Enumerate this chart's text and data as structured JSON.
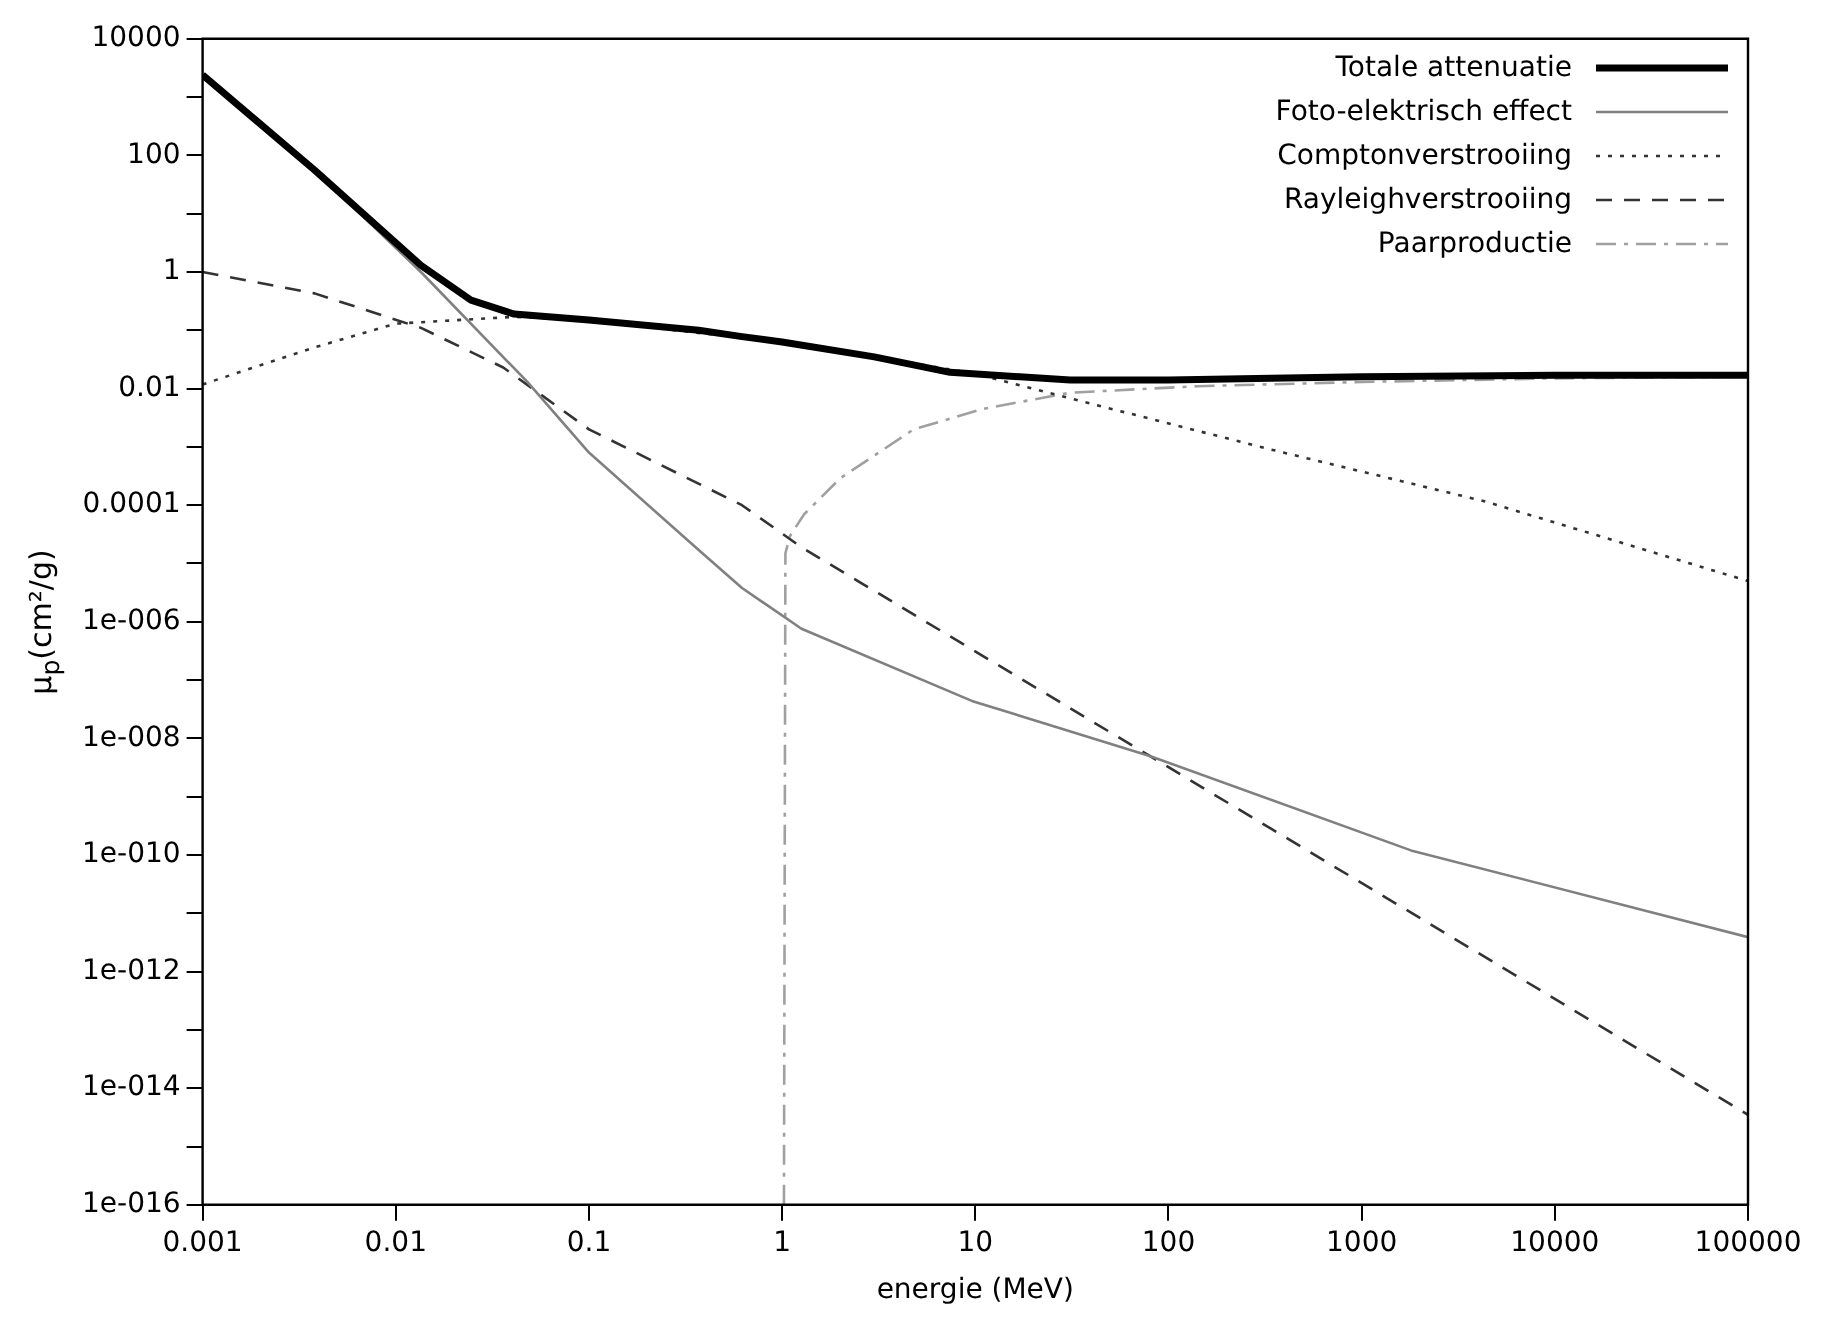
{
  "chart_data": {
    "type": "line",
    "xlabel": "energie (MeV)",
    "ylabel": "μ$_{p}$(cm²/g)",
    "log": "xy",
    "grid": false,
    "legend": "top right",
    "marker": "none",
    "xlim": [
      0.001,
      100000
    ],
    "xticks": [
      0.001,
      0.01,
      0.1,
      1,
      10,
      100,
      1000,
      10000,
      100000
    ],
    "ylim": [
      1e-16,
      10000
    ],
    "yticks": [
      10000,
      {
        "value": 1000,
        "label": null
      },
      100,
      {
        "value": 10,
        "label": null
      },
      1,
      {
        "value": 0.1,
        "label": null
      },
      0.01,
      {
        "value": 0.001,
        "label": null
      },
      0.0001,
      {
        "value": 1e-05,
        "label": null
      },
      {
        "value": 1e-06,
        "label": "1e-006"
      },
      {
        "value": 1e-07,
        "label": null
      },
      {
        "value": 1e-08,
        "label": "1e-008"
      },
      {
        "value": 1e-09,
        "label": null
      },
      {
        "value": 1e-10,
        "label": "1e-010"
      },
      {
        "value": 1e-11,
        "label": null
      },
      {
        "value": 1e-12,
        "label": "1e-012"
      },
      {
        "value": 1e-13,
        "label": null
      },
      {
        "value": 1e-14,
        "label": "1e-014"
      },
      {
        "value": 1e-15,
        "label": null
      },
      {
        "value": 1e-16,
        "label": "1e-016"
      }
    ],
    "series": [
      {
        "name": "Totale attenuatie",
        "color": "#000000",
        "line_style": "solid",
        "x": [
          0.001,
          0.0038,
          0.0135,
          0.0245,
          0.041,
          0.1,
          0.37,
          0.62,
          1,
          3,
          7.4,
          31,
          100,
          340,
          1000,
          10000,
          100000
        ],
        "values": [
          2400,
          56,
          1.3,
          0.33,
          0.19,
          0.15,
          0.1,
          0.078,
          0.063,
          0.035,
          0.019,
          0.014,
          0.014,
          0.015,
          0.016,
          0.017,
          0.017
        ]
      },
      {
        "name": "Foto-elektrisch effect",
        "color": "#808080",
        "line_style": "solid",
        "x": [
          0.001,
          0.0038,
          0.0135,
          0.048,
          0.1,
          0.37,
          0.62,
          1.26,
          9.6,
          80,
          1800,
          100000
        ],
        "values": [
          2400,
          56,
          1.0,
          0.013,
          0.0008,
          1.7e-05,
          3.8e-06,
          7.6e-07,
          4.4e-08,
          5e-09,
          1.2e-10,
          3.9e-12
        ]
      },
      {
        "name": "Comptonverstrooiing",
        "color": "#333333",
        "line_style": "dotted",
        "x": [
          0.001,
          0.0038,
          0.01,
          0.041,
          0.1,
          0.37,
          1,
          10,
          31,
          340,
          4400,
          100000
        ],
        "values": [
          0.0118,
          0.051,
          0.13,
          0.17,
          0.15,
          0.09,
          0.065,
          0.018,
          0.0068,
          0.0009,
          0.000115,
          5e-06
        ]
      },
      {
        "name": "Rayleighverstrooiing",
        "color": "#333333",
        "line_style": "dashed",
        "x": [
          0.001,
          0.0038,
          0.0135,
          0.036,
          0.1,
          0.62,
          1.26,
          80,
          100000
        ],
        "values": [
          1.0,
          0.43,
          0.11,
          0.023,
          0.002,
          0.0001,
          1.9e-05,
          5e-09,
          3.5e-15
        ]
      },
      {
        "name": "Paarproductie",
        "color": "#a0a0a0",
        "line_style": "dashdot",
        "x": [
          1.022,
          1.04,
          1.1,
          1.3,
          2,
          4.8,
          11,
          31,
          141,
          1000,
          10000,
          100000
        ],
        "values": [
          1e-16,
          1.5e-05,
          3e-05,
          7e-05,
          0.00029,
          0.002,
          0.0045,
          0.0085,
          0.011,
          0.013,
          0.015,
          0.016
        ]
      }
    ]
  }
}
